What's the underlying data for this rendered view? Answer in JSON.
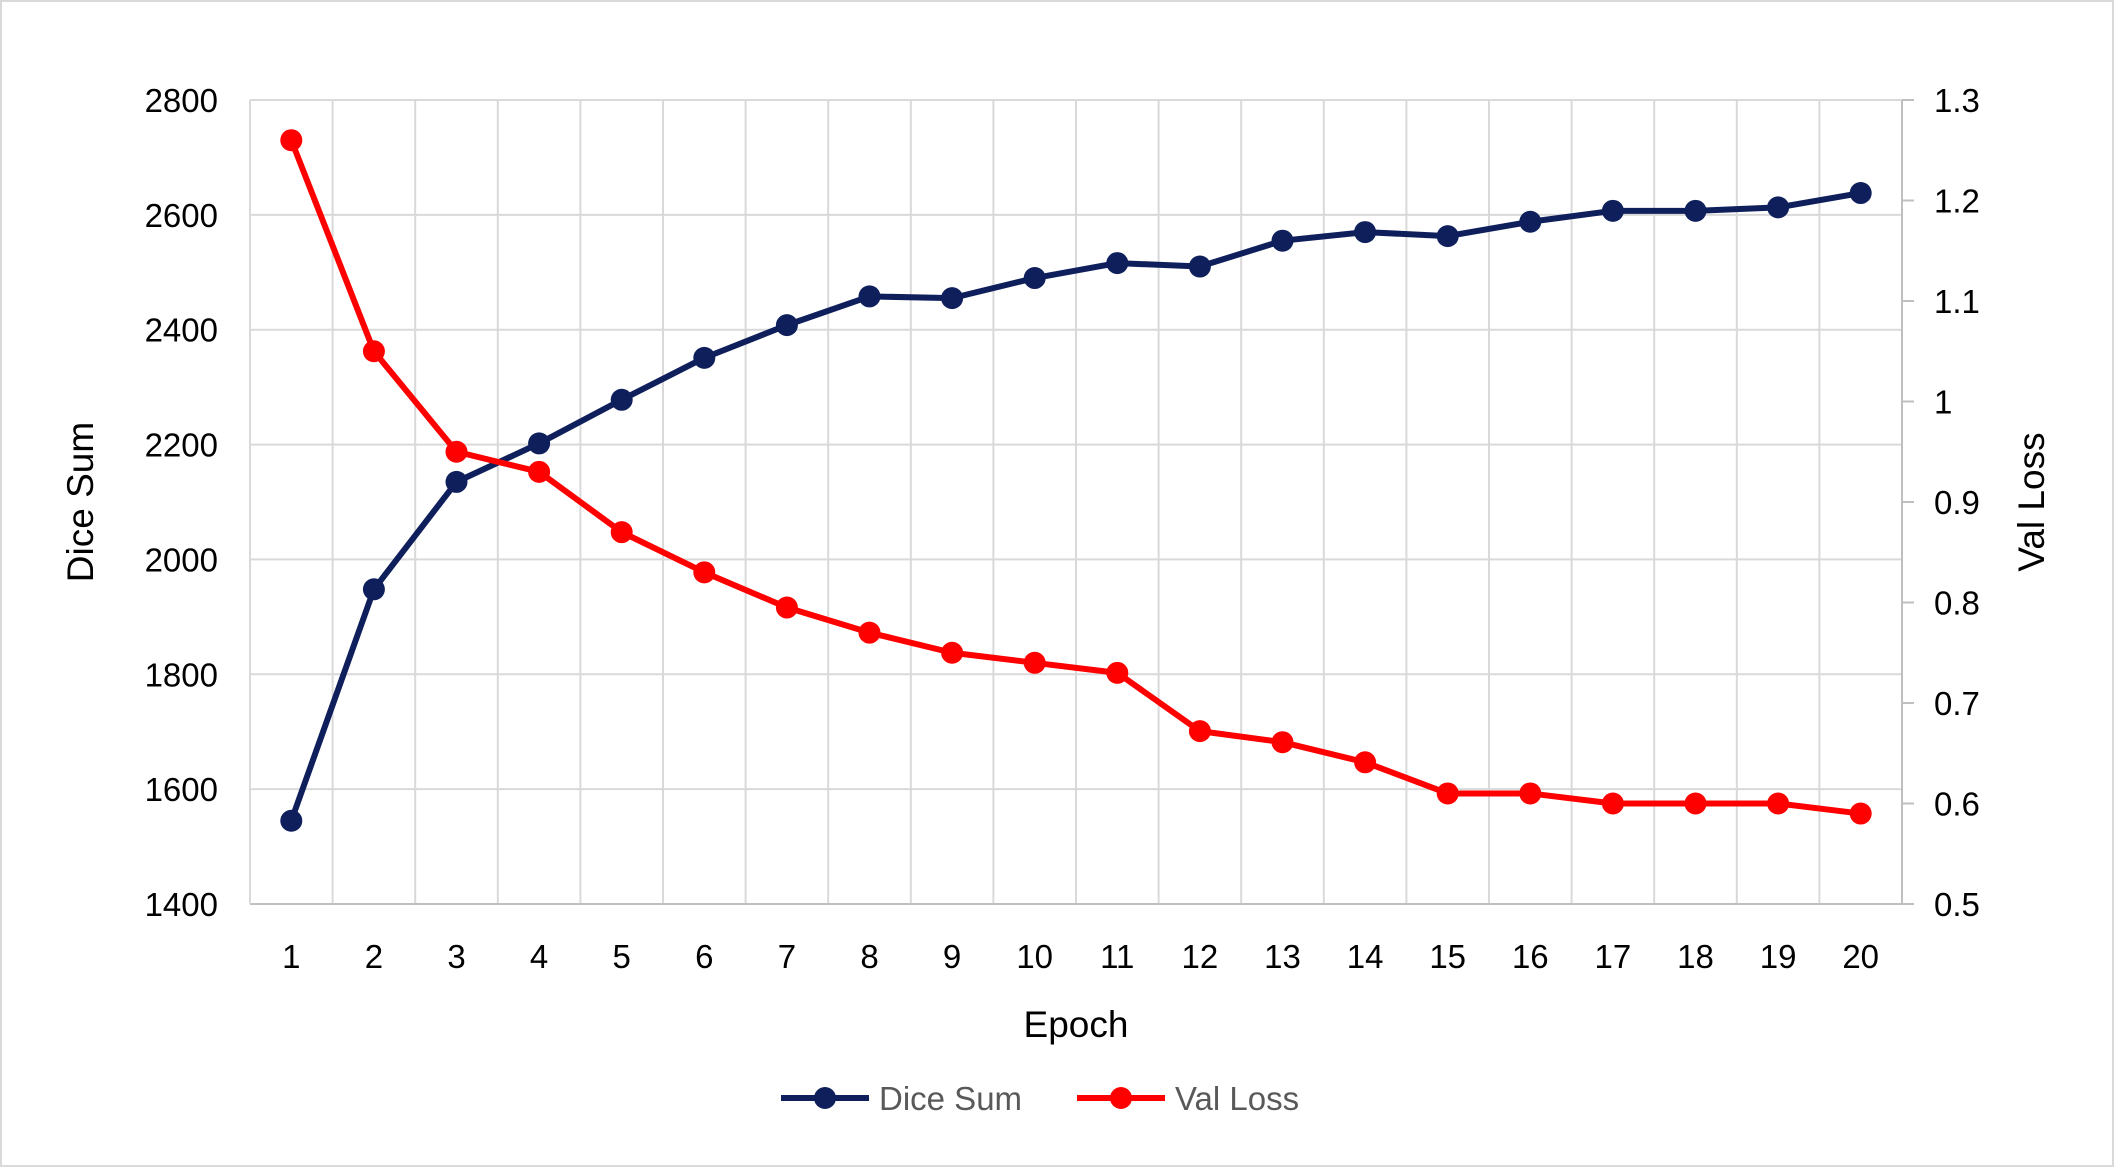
{
  "chart_data": {
    "type": "line",
    "title": "",
    "xlabel": "Epoch",
    "ylabel": "Dice Sum",
    "y2label": "Val Loss",
    "categories": [
      "1",
      "2",
      "3",
      "4",
      "5",
      "6",
      "7",
      "8",
      "9",
      "10",
      "11",
      "12",
      "13",
      "14",
      "15",
      "16",
      "17",
      "18",
      "19",
      "20"
    ],
    "ylim": [
      1400,
      2800
    ],
    "yticks": [
      "1400",
      "1600",
      "1800",
      "2000",
      "2200",
      "2400",
      "2600",
      "2800"
    ],
    "y2lim": [
      0.5,
      1.3
    ],
    "y2ticks": [
      "0.5",
      "0.6",
      "0.7",
      "0.8",
      "0.9",
      "1",
      "1.1",
      "1.2",
      "1.3"
    ],
    "grid": true,
    "legend_position": "bottom",
    "series": [
      {
        "name": "Dice Sum",
        "axis": "left",
        "color": "#0f1f5c",
        "values": [
          1545,
          1948,
          2135,
          2202,
          2278,
          2351,
          2408,
          2458,
          2455,
          2490,
          2516,
          2510,
          2555,
          2570,
          2563,
          2588,
          2607,
          2607,
          2613,
          2638
        ]
      },
      {
        "name": "Val Loss",
        "axis": "right",
        "color": "#ff0000",
        "values": [
          1.26,
          1.05,
          0.95,
          0.93,
          0.87,
          0.83,
          0.795,
          0.77,
          0.75,
          0.74,
          0.73,
          0.672,
          0.661,
          0.641,
          0.61,
          0.61,
          0.6,
          0.6,
          0.6,
          0.59
        ]
      }
    ]
  }
}
